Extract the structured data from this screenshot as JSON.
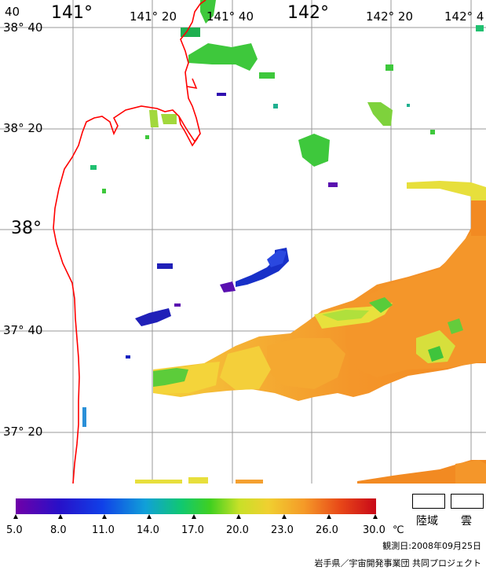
{
  "map": {
    "lon_labels": [
      "141°",
      "141° 20",
      "141° 40",
      "142°",
      "142° 20",
      "142° 4"
    ],
    "lat_labels": [
      "38° 40",
      "38° 20",
      "38°",
      "37° 40",
      "37° 20"
    ],
    "corner_label": "40",
    "colors": {
      "coast": "#ff0000",
      "grid": "#999999"
    }
  },
  "legend": {
    "ticks": [
      "5.0",
      "8.0",
      "11.0",
      "14.0",
      "17.0",
      "20.0",
      "23.0",
      "26.0",
      "30.0"
    ],
    "unit": "℃",
    "land_label": "陸域",
    "cloud_label": "雲"
  },
  "footer": {
    "date": "観測日:2008年09月25日",
    "credit": "岩手県／宇宙開発事業団 共同プロジェクト"
  }
}
